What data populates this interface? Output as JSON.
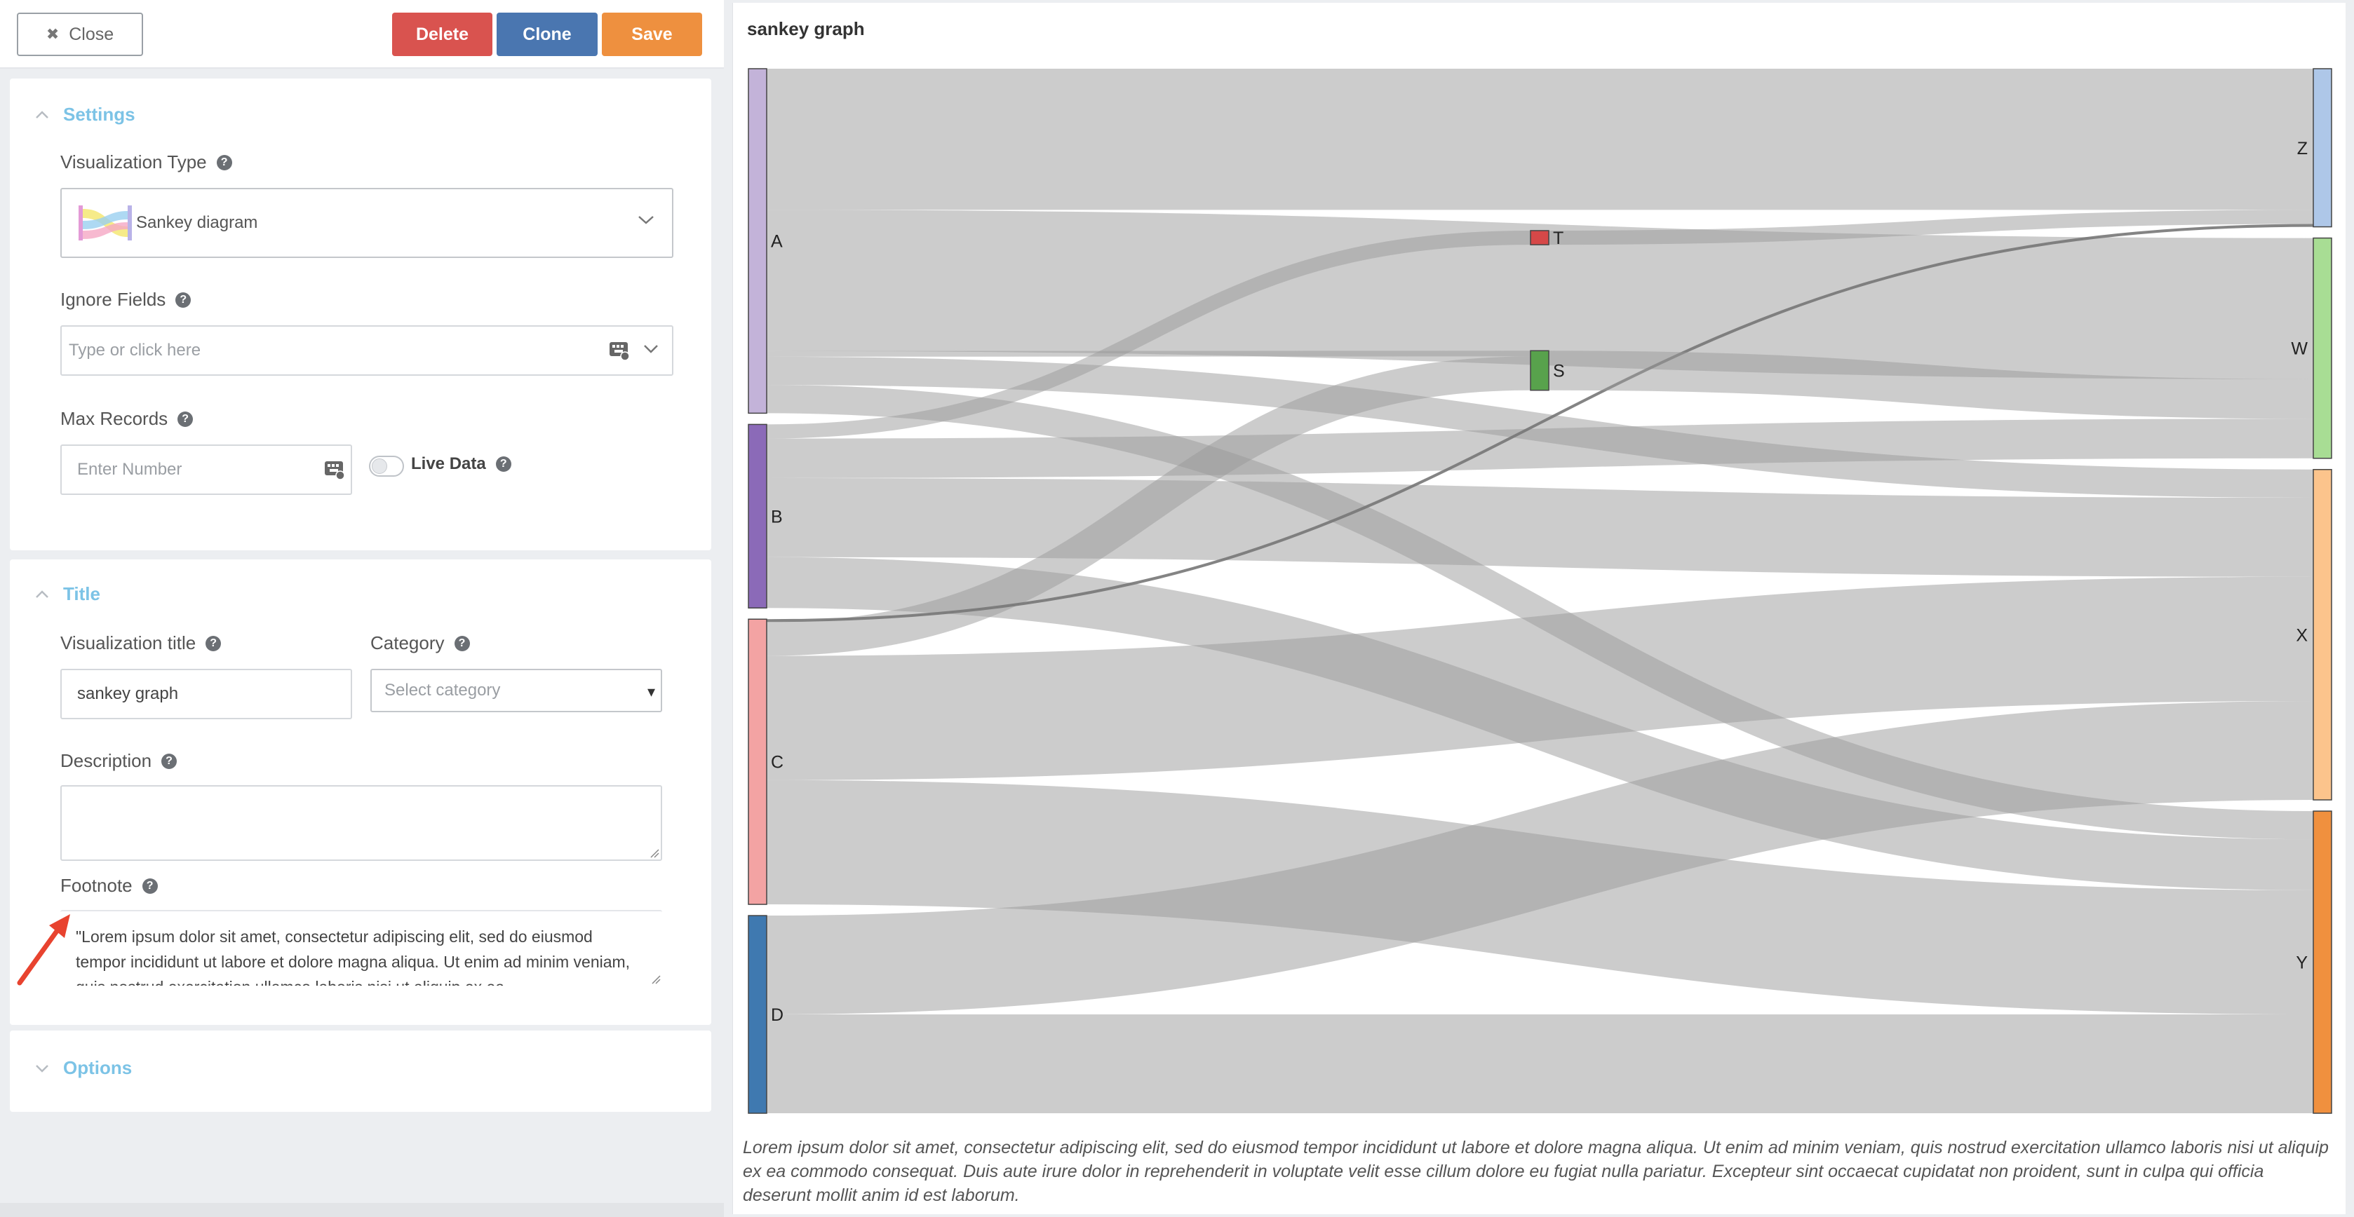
{
  "toolbar": {
    "close_label": "Close",
    "delete_label": "Delete",
    "clone_label": "Clone",
    "save_label": "Save",
    "colors": {
      "delete": "#d9534f",
      "clone": "#4a76b0",
      "save": "#ee903f"
    }
  },
  "settings": {
    "section_label": "Settings",
    "vis_type_label": "Visualization Type",
    "vis_type_value": "Sankey diagram",
    "ignore_fields_label": "Ignore Fields",
    "ignore_fields_placeholder": "Type or click here",
    "max_records_label": "Max Records",
    "max_records_placeholder": "Enter Number",
    "live_data_label": "Live Data",
    "live_data_on": false
  },
  "title_section": {
    "section_label": "Title",
    "vis_title_label": "Visualization title",
    "vis_title_value": "sankey graph",
    "category_label": "Category",
    "category_placeholder": "Select category",
    "description_label": "Description",
    "description_value": "",
    "footnote_label": "Footnote",
    "footnote_value": "\"Lorem ipsum dolor sit amet, consectetur adipiscing elit, sed do eiusmod tempor incididunt ut labore et dolore magna aliqua. Ut enim ad minim veniam, quis nostrud exercitation ullamco laboris nisi ut aliquip ex ea"
  },
  "options": {
    "section_label": "Options"
  },
  "accent_color": "#7cc3e6",
  "chart": {
    "title": "sankey graph",
    "footnote": "Lorem ipsum dolor sit amet, consectetur adipiscing elit, sed do eiusmod tempor incididunt ut labore et dolore magna aliqua. Ut enim ad minim veniam, quis nostrud exercitation ullamco laboris nisi ut aliquip ex ea commodo consequat. Duis aute irure dolor in reprehenderit in voluptate velit esse cillum dolore eu fugiat nulla pariatur. Excepteur sint occaecat cupidatat non proident, sunt in culpa qui officia deserunt mollit anim id est laborum."
  },
  "chart_data": {
    "type": "sankey",
    "title": "sankey graph",
    "nodes": [
      {
        "name": "A",
        "color": "#c3b3d9"
      },
      {
        "name": "B",
        "color": "#8b6ab8"
      },
      {
        "name": "C",
        "color": "#f3a3a3"
      },
      {
        "name": "D",
        "color": "#3f79b0"
      },
      {
        "name": "T",
        "color": "#d64848"
      },
      {
        "name": "S",
        "color": "#58a24c"
      },
      {
        "name": "Z",
        "color": "#aec7e8"
      },
      {
        "name": "W",
        "color": "#a8dd94"
      },
      {
        "name": "X",
        "color": "#fcc48c"
      },
      {
        "name": "Y",
        "color": "#f0903e"
      }
    ],
    "links": [
      {
        "source": "A",
        "target": "Z",
        "value": 50
      },
      {
        "source": "A",
        "target": "W",
        "value": 50
      },
      {
        "source": "A",
        "target": "X",
        "value": 10
      },
      {
        "source": "A",
        "target": "Y",
        "value": 10
      },
      {
        "source": "A",
        "target": "S",
        "value": 2
      },
      {
        "source": "B",
        "target": "T",
        "value": 5
      },
      {
        "source": "B",
        "target": "W",
        "value": 14
      },
      {
        "source": "B",
        "target": "X",
        "value": 28
      },
      {
        "source": "B",
        "target": "Y",
        "value": 18
      },
      {
        "source": "C",
        "target": "S",
        "value": 12
      },
      {
        "source": "C",
        "target": "X",
        "value": 44
      },
      {
        "source": "C",
        "target": "Y",
        "value": 44
      },
      {
        "source": "C",
        "target": "Z",
        "value": 1
      },
      {
        "source": "D",
        "target": "X",
        "value": 35
      },
      {
        "source": "D",
        "target": "Y",
        "value": 35
      },
      {
        "source": "T",
        "target": "Z",
        "value": 5
      },
      {
        "source": "S",
        "target": "W",
        "value": 14
      }
    ]
  }
}
